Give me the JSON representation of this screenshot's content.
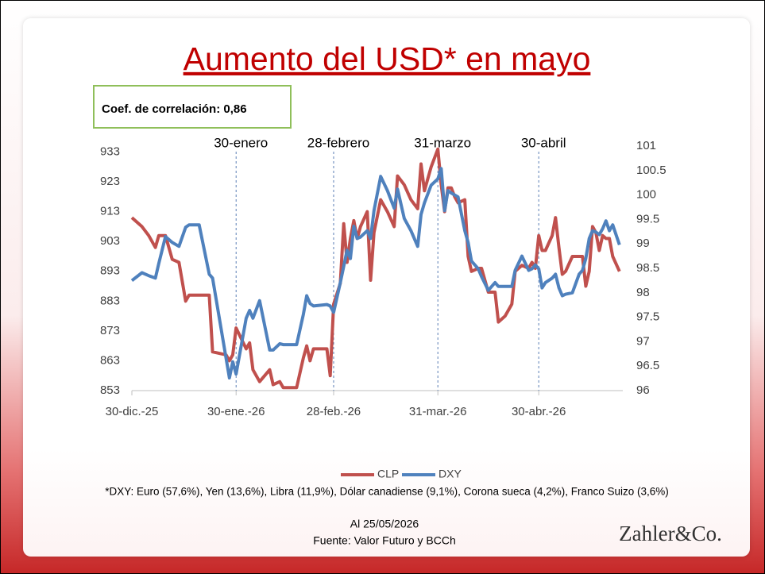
{
  "chart_data": {
    "type": "line",
    "title": "Aumento del USD* en mayo",
    "callout": "Coef. de correlación: 0,86",
    "x": [
      "2025-12-30",
      "2026-01-02",
      "2026-01-04",
      "2026-01-06",
      "2026-01-07",
      "2026-01-09",
      "2026-01-11",
      "2026-01-13",
      "2026-01-15",
      "2026-01-16",
      "2026-01-19",
      "2026-01-22",
      "2026-01-23",
      "2026-01-27",
      "2026-01-28",
      "2026-01-29",
      "2026-01-30",
      "2026-02-02",
      "2026-02-03",
      "2026-02-04",
      "2026-02-06",
      "2026-02-09",
      "2026-02-10",
      "2026-02-12",
      "2026-02-13",
      "2026-02-17",
      "2026-02-19",
      "2026-02-20",
      "2026-02-21",
      "2026-02-22",
      "2026-02-26",
      "2026-02-27",
      "2026-02-28",
      "2026-03-02",
      "2026-03-03",
      "2026-03-04",
      "2026-03-05",
      "2026-03-06",
      "2026-03-07",
      "2026-03-08",
      "2026-03-10",
      "2026-03-11",
      "2026-03-12",
      "2026-03-14",
      "2026-03-16",
      "2026-03-18",
      "2026-03-19",
      "2026-03-21",
      "2026-03-23",
      "2026-03-25",
      "2026-03-26",
      "2026-03-27",
      "2026-03-29",
      "2026-03-31",
      "2026-04-01",
      "2026-04-02",
      "2026-04-03",
      "2026-04-04",
      "2026-04-05",
      "2026-04-06",
      "2026-04-08",
      "2026-04-09",
      "2026-04-10",
      "2026-04-12",
      "2026-04-13",
      "2026-04-15",
      "2026-04-17",
      "2026-04-18",
      "2026-04-20",
      "2026-04-22",
      "2026-04-23",
      "2026-04-25",
      "2026-04-27",
      "2026-04-28",
      "2026-04-29",
      "2026-04-30",
      "2026-05-01",
      "2026-05-02",
      "2026-05-04",
      "2026-05-05",
      "2026-05-06",
      "2026-05-07",
      "2026-05-08",
      "2026-05-10",
      "2026-05-12",
      "2026-05-13",
      "2026-05-14",
      "2026-05-15",
      "2026-05-16",
      "2026-05-17",
      "2026-05-18",
      "2026-05-19",
      "2026-05-20",
      "2026-05-21",
      "2026-05-22",
      "2026-05-24"
    ],
    "series": [
      {
        "name": "CLP",
        "color": "#c0504d",
        "axis": "y",
        "values": [
          911,
          908,
          905,
          901,
          905,
          905,
          897,
          896,
          883,
          885,
          885,
          885,
          866,
          865,
          863,
          865,
          874,
          867,
          869,
          860,
          856,
          860,
          855,
          856,
          854,
          854,
          864,
          868,
          863,
          867,
          867,
          858,
          882,
          889,
          909,
          896,
          904,
          910,
          904,
          908,
          913,
          890,
          906,
          917,
          913,
          908,
          925,
          922,
          917,
          914,
          929,
          920,
          928,
          934,
          922,
          913,
          921,
          921,
          918,
          916,
          917,
          898,
          893,
          894,
          894,
          886,
          886,
          876,
          878,
          882,
          893,
          895,
          894,
          896,
          894,
          905,
          900,
          900,
          905,
          911,
          901,
          892,
          893,
          898,
          898,
          898,
          888,
          893,
          908,
          906,
          900,
          905,
          904,
          904,
          898,
          893
        ]
      },
      {
        "name": "DXY",
        "color": "#4f81bd",
        "axis": "y2",
        "values": [
          98.25,
          98.41,
          98.35,
          98.3,
          98.6,
          99.15,
          99.03,
          98.95,
          99.34,
          99.39,
          99.39,
          98.38,
          98.3,
          96.67,
          96.26,
          96.59,
          96.34,
          97.48,
          97.64,
          97.48,
          97.84,
          96.83,
          96.83,
          96.96,
          96.94,
          96.94,
          97.56,
          97.94,
          97.78,
          97.73,
          97.76,
          97.73,
          97.6,
          98.21,
          98.54,
          98.87,
          98.7,
          99.36,
          99.11,
          99.14,
          99.27,
          99.11,
          99.68,
          100.38,
          100.09,
          99.73,
          100.12,
          99.52,
          99.27,
          98.95,
          99.6,
          99.84,
          100.2,
          100.33,
          100.54,
          99.68,
          100.09,
          100.04,
          100,
          99.96,
          99.27,
          99.03,
          98.65,
          98.49,
          98.33,
          98.05,
          98.21,
          98.13,
          98.13,
          98.13,
          98.46,
          98.75,
          98.46,
          98.49,
          98.57,
          98.49,
          98.1,
          98.21,
          98.3,
          98.38,
          98.1,
          97.94,
          97.97,
          98,
          98.38,
          98.46,
          98.7,
          99.11,
          99.27,
          99.24,
          99.19,
          99.31,
          99.47,
          99.27,
          99.39,
          98.98
        ]
      }
    ],
    "xlim": [
      "2025-12-30",
      "2026-05-25"
    ],
    "xticks": [
      {
        "value": "2025-12-30",
        "label": "30-dic.-25"
      },
      {
        "value": "2026-01-30",
        "label": "30-ene.-26"
      },
      {
        "value": "2026-02-28",
        "label": "28-feb.-26"
      },
      {
        "value": "2026-03-31",
        "label": "31-mar.-26"
      },
      {
        "value": "2026-04-30",
        "label": "30-abr.-26"
      }
    ],
    "ylim": [
      853,
      935
    ],
    "yticks": [
      853,
      863,
      873,
      883,
      893,
      903,
      913,
      923,
      933
    ],
    "y2lim": [
      96,
      101
    ],
    "y2ticks": [
      96,
      96.5,
      97,
      97.5,
      98,
      98.5,
      99,
      99.5,
      100,
      100.5,
      101
    ],
    "annotations": [
      {
        "x": "2026-01-30",
        "label": "30-enero"
      },
      {
        "x": "2026-02-28",
        "label": "28-febrero"
      },
      {
        "x": "2026-03-31",
        "label": "31-marzo"
      },
      {
        "x": "2026-04-30",
        "label": "30-abril"
      }
    ],
    "legend": "bottom",
    "footnote": "*DXY: Euro (57,6%), Yen (13,6%), Libra (11,9%), Dólar canadiense (9,1%), Corona sueca (4,2%),  Franco Suizo (3,6%)",
    "date_note": "Al 25/05/2026",
    "source": "Fuente: Valor Futuro y BCCh",
    "logo": "Zahler&Co."
  }
}
